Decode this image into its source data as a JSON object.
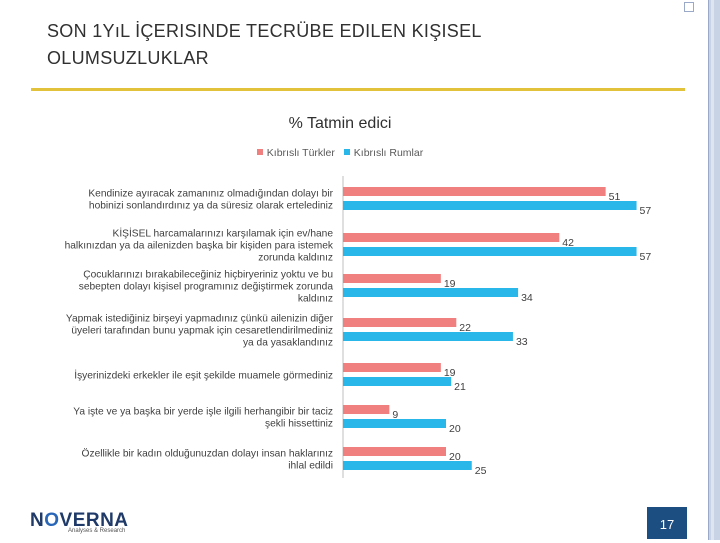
{
  "slide": {
    "title_line1": "SON 1YıL İÇERISINDE TECRÜBE EDILEN KIŞISEL",
    "title_line2": "OLUMSUZLUKLAR",
    "page_number": "17"
  },
  "logo": {
    "text_pre": "N",
    "text_o": "O",
    "text_post": "VERNA",
    "subtitle": "Analyses & Research"
  },
  "colors": {
    "turk": "#f08080",
    "rum": "#29b6e8",
    "title_rule": "#e2c23a",
    "page_box": "#1d4e82"
  },
  "chart_data": {
    "type": "bar",
    "orientation": "horizontal",
    "title": "% Tatmin edici",
    "categories": [
      [
        "Kendinize ayıracak zamanınız olmadığından dolayı bir",
        "hobinizi sonlandırdınız ya da süresiz olarak ertelediniz"
      ],
      [
        "KİŞİSEL harcamalarınızı karşılamak için ev/hane",
        "halkınızdan ya da ailenizden başka bir kişiden para istemek",
        "zorunda kaldınız"
      ],
      [
        "Çocuklarınızı bırakabileceğiniz hiçbiryeriniz yoktu ve bu",
        "sebepten dolayı kişisel programınız değiştirmek zorunda",
        "kaldınız"
      ],
      [
        "Yapmak istediğiniz birşeyi yapmadınız çünkü ailenizin diğer",
        "üyeleri tarafından bunu yapmak için cesaretlendirilmediniz",
        "ya da yasaklandınız"
      ],
      [
        "İşyerinizdeki erkekler ile eşit şekilde muamele görmediniz"
      ],
      [
        "Ya işte ve ya başka bir yerde işle ilgili herhangibir bir taciz",
        "şekli hissettiniz"
      ],
      [
        "Özellikle bir kadın olduğunuzdan dolayı insan haklarınız",
        "ihlal edildi"
      ]
    ],
    "series": [
      {
        "name": "Kıbrıslı Türkler",
        "values": [
          51,
          42,
          19,
          22,
          19,
          9,
          20
        ]
      },
      {
        "name": "Kıbrıslı Rumlar",
        "values": [
          57,
          57,
          34,
          33,
          21,
          20,
          25
        ]
      }
    ],
    "xlim": [
      0,
      60
    ],
    "legend": "top"
  }
}
